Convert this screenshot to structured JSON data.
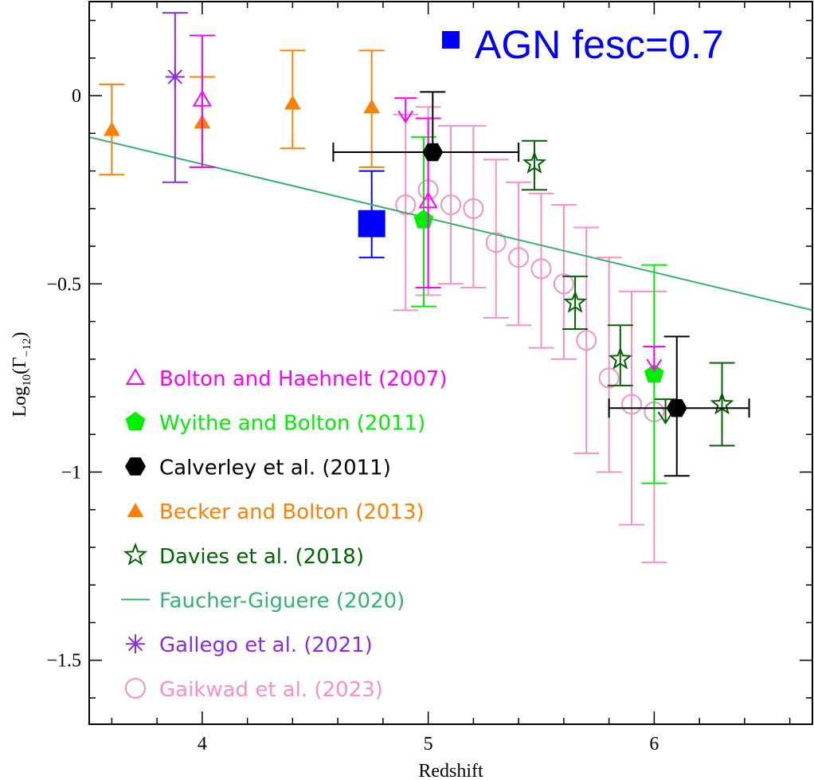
{
  "chart_data": {
    "type": "scatter",
    "title": "",
    "xlabel": "Redshift",
    "ylabel_base": "Log",
    "ylabel_sub": "10",
    "ylabel_open": "(Γ",
    "ylabel_sub2": "−12",
    "ylabel_close": ")",
    "xlim": [
      3.5,
      6.7
    ],
    "ylim": [
      -1.67,
      0.25
    ],
    "x_ticks": [
      4,
      5,
      6
    ],
    "x_tick_labels": [
      "4",
      "5",
      "6"
    ],
    "y_ticks": [
      0,
      -0.5,
      -1,
      -1.5
    ],
    "y_tick_labels": [
      "0",
      "−0.5",
      "−1",
      "−1.5"
    ],
    "annotation": {
      "text": "AGN fesc=0.7",
      "color": "#0000ff"
    },
    "model": {
      "name": "AGN fesc=0.7",
      "color": "#0000ff",
      "marker": "filled-square",
      "points": [
        {
          "x": 4.75,
          "y": -0.34,
          "ylo": -0.43,
          "yhi": -0.2
        }
      ]
    },
    "series": [
      {
        "name": "Bolton and Haehnelt (2007)",
        "color": "#ff00ff",
        "marker": "open-triangle",
        "points": [
          {
            "x": 4.0,
            "y": -0.01,
            "ylo": -0.19,
            "yhi": 0.16
          },
          {
            "x": 5.0,
            "y": -0.28,
            "ylo": -0.51,
            "yhi": -0.06
          }
        ],
        "upper_limits": [
          {
            "x": 4.9,
            "y": -0.07
          },
          {
            "x": 6.0,
            "y": -0.73
          }
        ]
      },
      {
        "name": "Wyithe and Bolton (2011)",
        "color": "#00ee00",
        "marker": "filled-pentagon",
        "points": [
          {
            "x": 4.98,
            "y": -0.33,
            "ylo": -0.56,
            "yhi": -0.11
          },
          {
            "x": 6.0,
            "y": -0.74,
            "ylo": -1.03,
            "yhi": -0.45
          }
        ]
      },
      {
        "name": "Calverley et al. (2011)",
        "color": "#000000",
        "marker": "filled-hexagon",
        "points": [
          {
            "x": 5.02,
            "y": -0.15,
            "ylo": -0.15,
            "yhi": 0.01,
            "xlo": 4.58,
            "xhi": 5.4
          },
          {
            "x": 6.1,
            "y": -0.83,
            "ylo": -1.01,
            "yhi": -0.64,
            "xlo": 5.8,
            "xhi": 6.42
          }
        ]
      },
      {
        "name": "Becker and Bolton (2013)",
        "color": "#ff8000",
        "marker": "filled-triangle",
        "points": [
          {
            "x": 3.6,
            "y": -0.09,
            "ylo": -0.21,
            "yhi": 0.03
          },
          {
            "x": 4.0,
            "y": -0.07,
            "ylo": -0.19,
            "yhi": 0.05
          },
          {
            "x": 4.4,
            "y": -0.02,
            "ylo": -0.14,
            "yhi": 0.12
          },
          {
            "x": 4.75,
            "y": -0.03,
            "ylo": -0.19,
            "yhi": 0.12
          }
        ]
      },
      {
        "name": "Davies et al. (2018)",
        "color": "#006400",
        "marker": "open-star",
        "points": [
          {
            "x": 5.47,
            "y": -0.18,
            "ylo": -0.25,
            "yhi": -0.12
          },
          {
            "x": 5.65,
            "y": -0.55,
            "ylo": -0.62,
            "yhi": -0.48
          },
          {
            "x": 5.85,
            "y": -0.7,
            "ylo": -0.77,
            "yhi": -0.61
          },
          {
            "x": 6.3,
            "y": -0.82,
            "ylo": -0.93,
            "yhi": -0.71
          }
        ],
        "upper_limits": [
          {
            "x": 6.05,
            "y": -0.87
          }
        ]
      },
      {
        "name": "Faucher-Giguere (2020)",
        "color": "#33b36b",
        "marker": "line",
        "line": {
          "x": [
            3.5,
            6.7
          ],
          "y": [
            -0.11,
            -0.57
          ]
        }
      },
      {
        "name": "Gallego et al. (2021)",
        "color": "#8a2be2",
        "marker": "asterisk",
        "points": [
          {
            "x": 3.88,
            "y": 0.05,
            "ylo": -0.23,
            "yhi": 0.22
          }
        ]
      },
      {
        "name": "Gaikwad et al. (2023)",
        "color": "#f78fc8",
        "marker": "open-circle",
        "points": [
          {
            "x": 4.9,
            "y": -0.29,
            "ylo": -0.57,
            "yhi": -0.05
          },
          {
            "x": 5.0,
            "y": -0.25,
            "ylo": -0.53,
            "yhi": -0.03
          },
          {
            "x": 5.1,
            "y": -0.29,
            "ylo": -0.5,
            "yhi": -0.08
          },
          {
            "x": 5.2,
            "y": -0.3,
            "ylo": -0.51,
            "yhi": -0.08
          },
          {
            "x": 5.3,
            "y": -0.39,
            "ylo": -0.59,
            "yhi": -0.17
          },
          {
            "x": 5.4,
            "y": -0.43,
            "ylo": -0.61,
            "yhi": -0.23
          },
          {
            "x": 5.5,
            "y": -0.46,
            "ylo": -0.67,
            "yhi": -0.26
          },
          {
            "x": 5.6,
            "y": -0.5,
            "ylo": -0.7,
            "yhi": -0.29
          },
          {
            "x": 5.7,
            "y": -0.65,
            "ylo": -0.95,
            "yhi": -0.35
          },
          {
            "x": 5.8,
            "y": -0.75,
            "ylo": -1.0,
            "yhi": -0.43
          },
          {
            "x": 5.9,
            "y": -0.82,
            "ylo": -1.14,
            "yhi": -0.52
          },
          {
            "x": 6.0,
            "y": -0.84,
            "ylo": -1.24,
            "yhi": -0.52
          }
        ]
      }
    ]
  }
}
